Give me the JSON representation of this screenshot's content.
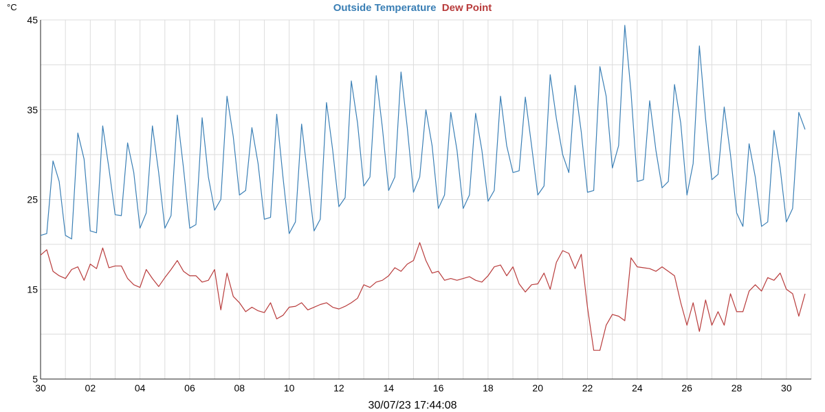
{
  "title": {
    "series_1": "Outside Temperature",
    "series_2": "Dew Point",
    "color_1": "#3a7fb5",
    "color_2": "#b83b3b"
  },
  "unit": "°C",
  "timestamp": "30/07/23 17:44:08",
  "chart_data": {
    "type": "line",
    "xlabel": "",
    "ylabel": "°C",
    "ylim": [
      5,
      45
    ],
    "yticks": [
      "5",
      "15",
      "25",
      "35",
      "45"
    ],
    "xlim": [
      0,
      31
    ],
    "xticks": [
      {
        "pos": 0,
        "label": "30"
      },
      {
        "pos": 2,
        "label": "02"
      },
      {
        "pos": 4,
        "label": "04"
      },
      {
        "pos": 6,
        "label": "06"
      },
      {
        "pos": 8,
        "label": "08"
      },
      {
        "pos": 10,
        "label": "10"
      },
      {
        "pos": 12,
        "label": "12"
      },
      {
        "pos": 14,
        "label": "14"
      },
      {
        "pos": 16,
        "label": "16"
      },
      {
        "pos": 18,
        "label": "18"
      },
      {
        "pos": 20,
        "label": "20"
      },
      {
        "pos": 22,
        "label": "22"
      },
      {
        "pos": 24,
        "label": "24"
      },
      {
        "pos": 26,
        "label": "26"
      },
      {
        "pos": 28,
        "label": "28"
      },
      {
        "pos": 30,
        "label": "30"
      }
    ],
    "grid": true,
    "series": [
      {
        "name": "Outside Temperature",
        "color": "#3a7fb5",
        "x": [
          0,
          0.25,
          0.5,
          0.75,
          1.0,
          1.25,
          1.5,
          1.75,
          2.0,
          2.25,
          2.5,
          2.75,
          3.0,
          3.25,
          3.5,
          3.75,
          4.0,
          4.25,
          4.5,
          4.75,
          5.0,
          5.25,
          5.5,
          5.75,
          6.0,
          6.25,
          6.5,
          6.75,
          7.0,
          7.25,
          7.5,
          7.75,
          8.0,
          8.25,
          8.5,
          8.75,
          9.0,
          9.25,
          9.5,
          9.75,
          10.0,
          10.25,
          10.5,
          10.75,
          11.0,
          11.25,
          11.5,
          11.75,
          12.0,
          12.25,
          12.5,
          12.75,
          13.0,
          13.25,
          13.5,
          13.75,
          14.0,
          14.25,
          14.5,
          14.75,
          15.0,
          15.25,
          15.5,
          15.75,
          16.0,
          16.25,
          16.5,
          16.75,
          17.0,
          17.25,
          17.5,
          17.75,
          18.0,
          18.25,
          18.5,
          18.75,
          19.0,
          19.25,
          19.5,
          19.75,
          20.0,
          20.25,
          20.5,
          20.75,
          21.0,
          21.25,
          21.5,
          21.75,
          22.0,
          22.25,
          22.5,
          22.75,
          23.0,
          23.25,
          23.5,
          23.75,
          24.0,
          24.25,
          24.5,
          24.75,
          25.0,
          25.25,
          25.5,
          25.75,
          26.0,
          26.25,
          26.5,
          26.75,
          27.0,
          27.25,
          27.5,
          27.75,
          28.0,
          28.25,
          28.5,
          28.75,
          29.0,
          29.25,
          29.5,
          29.75,
          30.0,
          30.25,
          30.5,
          30.75
        ],
        "values": [
          21.0,
          21.2,
          29.3,
          27.0,
          21.0,
          20.6,
          32.4,
          29.5,
          21.5,
          21.3,
          33.2,
          28.5,
          23.3,
          23.2,
          31.3,
          28.0,
          21.8,
          23.5,
          33.2,
          28.0,
          21.8,
          23.2,
          34.4,
          28.5,
          21.8,
          22.2,
          34.1,
          27.5,
          23.8,
          25.0,
          36.5,
          32.0,
          25.5,
          26.0,
          33.0,
          29.0,
          22.8,
          23.0,
          34.5,
          27.5,
          21.2,
          22.5,
          33.4,
          27.5,
          21.5,
          22.8,
          35.8,
          30.5,
          24.2,
          25.2,
          38.2,
          33.5,
          26.5,
          27.5,
          38.8,
          33.0,
          26.0,
          27.5,
          39.2,
          33.0,
          25.8,
          27.5,
          35.0,
          31.0,
          24.0,
          25.5,
          34.7,
          30.5,
          24.0,
          25.5,
          34.6,
          30.5,
          24.8,
          26.0,
          36.5,
          31.0,
          28.0,
          28.2,
          36.4,
          31.0,
          25.5,
          26.5,
          38.9,
          34.0,
          30.0,
          28.0,
          37.7,
          32.5,
          25.8,
          26.0,
          39.8,
          36.5,
          28.5,
          31.0,
          44.4,
          37.0,
          27.0,
          27.2,
          36.0,
          30.5,
          26.3,
          27.0,
          37.8,
          33.5,
          25.5,
          29.0,
          42.1,
          34.0,
          27.2,
          27.8,
          35.3,
          30.0,
          23.5,
          22.0,
          31.2,
          27.5,
          22.0,
          22.5,
          32.7,
          28.5,
          22.5,
          24.0,
          34.7,
          32.8
        ]
      },
      {
        "name": "Dew Point",
        "color": "#b83b3b",
        "x": [
          0,
          0.25,
          0.5,
          0.75,
          1.0,
          1.25,
          1.5,
          1.75,
          2.0,
          2.25,
          2.5,
          2.75,
          3.0,
          3.25,
          3.5,
          3.75,
          4.0,
          4.25,
          4.5,
          4.75,
          5.0,
          5.25,
          5.5,
          5.75,
          6.0,
          6.25,
          6.5,
          6.75,
          7.0,
          7.25,
          7.5,
          7.75,
          8.0,
          8.25,
          8.5,
          8.75,
          9.0,
          9.25,
          9.5,
          9.75,
          10.0,
          10.25,
          10.5,
          10.75,
          11.0,
          11.25,
          11.5,
          11.75,
          12.0,
          12.25,
          12.5,
          12.75,
          13.0,
          13.25,
          13.5,
          13.75,
          14.0,
          14.25,
          14.5,
          14.75,
          15.0,
          15.25,
          15.5,
          15.75,
          16.0,
          16.25,
          16.5,
          16.75,
          17.0,
          17.25,
          17.5,
          17.75,
          18.0,
          18.25,
          18.5,
          18.75,
          19.0,
          19.25,
          19.5,
          19.75,
          20.0,
          20.25,
          20.5,
          20.75,
          21.0,
          21.25,
          21.5,
          21.75,
          22.0,
          22.25,
          22.5,
          22.75,
          23.0,
          23.25,
          23.5,
          23.75,
          24.0,
          24.25,
          24.5,
          24.75,
          25.0,
          25.25,
          25.5,
          25.75,
          26.0,
          26.25,
          26.5,
          26.75,
          27.0,
          27.25,
          27.5,
          27.75,
          28.0,
          28.25,
          28.5,
          28.75,
          29.0,
          29.25,
          29.5,
          29.75,
          30.0,
          30.25,
          30.5,
          30.75
        ],
        "values": [
          18.8,
          19.4,
          17.0,
          16.5,
          16.2,
          17.2,
          17.5,
          16.0,
          17.8,
          17.3,
          19.6,
          17.4,
          17.6,
          17.6,
          16.2,
          15.5,
          15.2,
          17.2,
          16.2,
          15.3,
          16.3,
          17.2,
          18.2,
          17.0,
          16.5,
          16.5,
          15.8,
          16.0,
          17.2,
          12.7,
          16.8,
          14.2,
          13.5,
          12.5,
          13.0,
          12.6,
          12.4,
          13.5,
          11.7,
          12.1,
          13.0,
          13.1,
          13.5,
          12.7,
          13.0,
          13.3,
          13.5,
          13.0,
          12.8,
          13.1,
          13.5,
          14.0,
          15.5,
          15.2,
          15.8,
          16.0,
          16.5,
          17.4,
          17.0,
          17.8,
          18.2,
          20.2,
          18.2,
          16.8,
          17.0,
          16.0,
          16.2,
          16.0,
          16.2,
          16.4,
          16.0,
          15.8,
          16.5,
          17.5,
          17.7,
          16.5,
          17.5,
          15.6,
          14.7,
          15.5,
          15.6,
          16.8,
          15.0,
          18.0,
          19.3,
          19.0,
          17.3,
          18.9,
          13.0,
          8.2,
          8.2,
          11.0,
          12.2,
          12.0,
          11.5,
          18.5,
          17.5,
          17.4,
          17.3,
          17.0,
          17.5,
          17.0,
          16.5,
          13.5,
          11.0,
          13.5,
          10.3,
          13.8,
          11.0,
          12.5,
          11.0,
          14.5,
          12.5,
          12.5,
          14.8,
          15.5,
          14.8,
          16.3,
          16.0,
          16.8,
          15.0,
          14.5,
          12.0,
          14.5
        ]
      }
    ]
  }
}
